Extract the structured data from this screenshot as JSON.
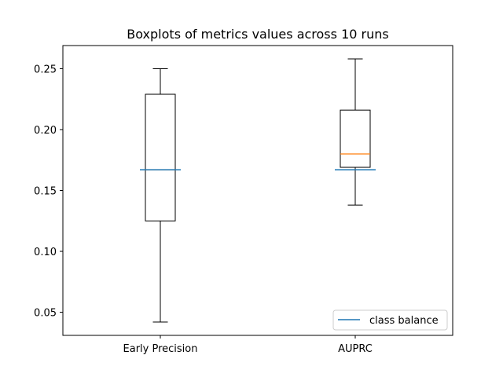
{
  "chart_data": {
    "type": "box",
    "title": "Boxplots of metrics values across 10 runs",
    "xlabel": "",
    "ylabel": "",
    "categories": [
      "Early Precision",
      "AUPRC"
    ],
    "boxes": [
      {
        "category": "Early Precision",
        "whisker_low": 0.042,
        "q1": 0.125,
        "median": 0.167,
        "q3": 0.229,
        "whisker_high": 0.25
      },
      {
        "category": "AUPRC",
        "whisker_low": 0.138,
        "q1": 0.169,
        "median": 0.18,
        "q3": 0.216,
        "whisker_high": 0.258
      }
    ],
    "reference": {
      "name": "class balance",
      "value": 0.167,
      "color": "#1f77b4"
    },
    "median_color": "#ff7f0e",
    "ylim": [
      0.031,
      0.269
    ],
    "yticks": [
      0.05,
      0.1,
      0.15,
      0.2,
      0.25
    ],
    "ytick_labels": [
      "0.05",
      "0.10",
      "0.15",
      "0.20",
      "0.25"
    ],
    "legend_position": "lower right",
    "grid": false
  }
}
